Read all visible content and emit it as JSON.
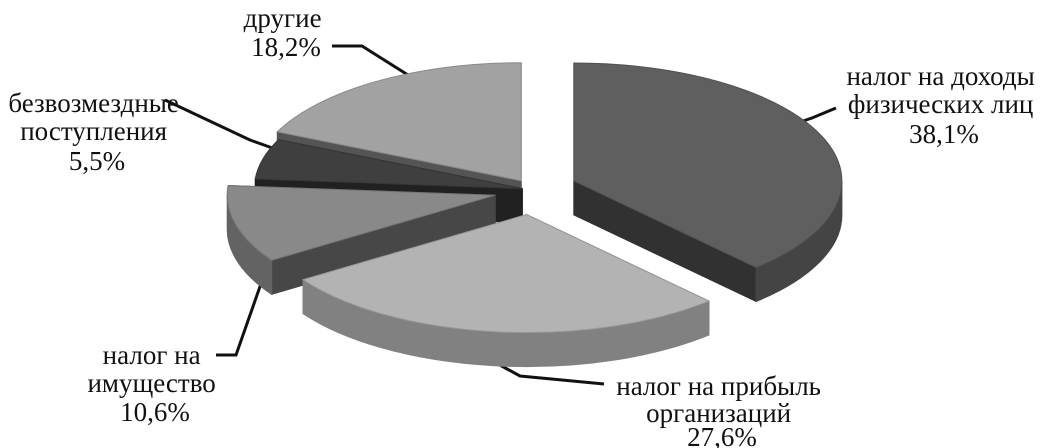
{
  "chart_data": {
    "type": "pie",
    "style": "3d-exploded",
    "legend": "none",
    "slices": [
      {
        "label_lines": [
          "налог на доходы",
          "физических лиц"
        ],
        "value_label": "38,1%",
        "value": 38.1,
        "color": "#5f5f5f"
      },
      {
        "label_lines": [
          "налог на прибыль",
          "организаций"
        ],
        "value_label": "27,6%",
        "value": 27.6,
        "color": "#b3b3b3"
      },
      {
        "label_lines": [
          "налог на",
          "имущество"
        ],
        "value_label": "10,6%",
        "value": 10.6,
        "color": "#898989"
      },
      {
        "label_lines": [
          "безвозмездные",
          "поступления"
        ],
        "value_label": "5,5%",
        "value": 5.5,
        "color": "#3f3f3f"
      },
      {
        "label_lines": [
          "другие"
        ],
        "value_label": "18,2%",
        "value": 18.2,
        "color": "#a2a2a2"
      }
    ]
  }
}
